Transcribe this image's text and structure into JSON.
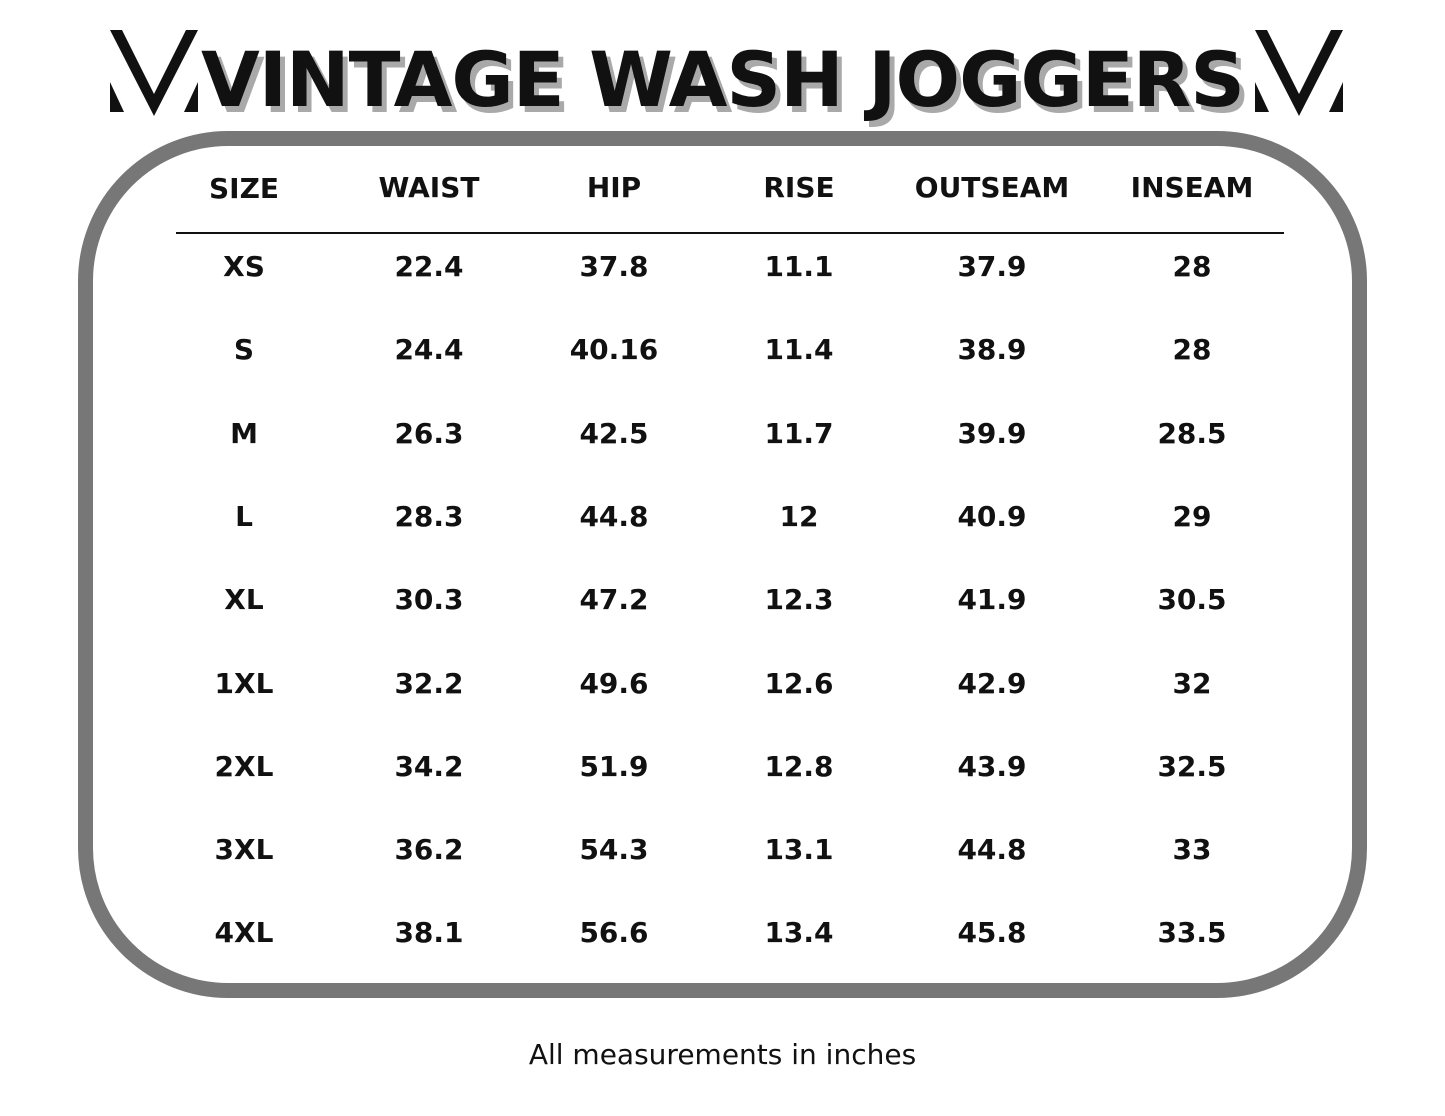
{
  "title": "VINTAGE WASH JOGGERS",
  "logo_icon": "chevron-v-logo-icon",
  "colors": {
    "text": "#111111",
    "frame": "#777777",
    "title_shadow": "#a9a9a9",
    "background": "#ffffff"
  },
  "table": {
    "headers": [
      "SIZE",
      "WAIST",
      "HIP",
      "RISE",
      "OUTSEAM",
      "INSEAM"
    ],
    "rows": [
      [
        "XS",
        "22.4",
        "37.8",
        "11.1",
        "37.9",
        "28"
      ],
      [
        "S",
        "24.4",
        "40.16",
        "11.4",
        "38.9",
        "28"
      ],
      [
        "M",
        "26.3",
        "42.5",
        "11.7",
        "39.9",
        "28.5"
      ],
      [
        "L",
        "28.3",
        "44.8",
        "12",
        "40.9",
        "29"
      ],
      [
        "XL",
        "30.3",
        "47.2",
        "12.3",
        "41.9",
        "30.5"
      ],
      [
        "1XL",
        "32.2",
        "49.6",
        "12.6",
        "42.9",
        "32"
      ],
      [
        "2XL",
        "34.2",
        "51.9",
        "12.8",
        "43.9",
        "32.5"
      ],
      [
        "3XL",
        "36.2",
        "54.3",
        "13.1",
        "44.8",
        "33"
      ],
      [
        "4XL",
        "38.1",
        "56.6",
        "13.4",
        "45.8",
        "33.5"
      ]
    ]
  },
  "footnote": "All measurements in inches"
}
